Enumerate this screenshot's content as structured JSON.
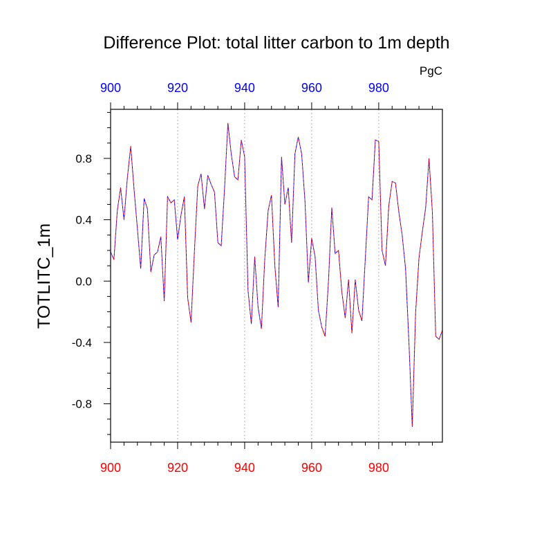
{
  "chart_data": {
    "type": "line",
    "title": "Difference Plot: total litter carbon to 1m depth",
    "units": "PgC",
    "ylabel": "TOTLITC_1m",
    "xlabel": "",
    "xlim": [
      900,
      999
    ],
    "ylim": [
      -1.05,
      1.12
    ],
    "x_ticks": [
      900,
      920,
      940,
      960,
      980
    ],
    "x_tick_labels": [
      "900",
      "920",
      "940",
      "960",
      "980"
    ],
    "y_ticks": [
      0.8,
      0.4,
      0.0,
      -0.4,
      -0.8
    ],
    "y_tick_labels": [
      "0.8",
      "0.4",
      "0.0",
      "-0.4",
      "-0.8"
    ],
    "bottom_axis_color": "#ff0000",
    "top_axis_color": "#0000ff",
    "grid": "vertical dotted",
    "x": [
      900,
      901,
      902,
      903,
      904,
      905,
      906,
      907,
      908,
      909,
      910,
      911,
      912,
      913,
      914,
      915,
      916,
      917,
      918,
      919,
      920,
      921,
      922,
      923,
      924,
      925,
      926,
      927,
      928,
      929,
      930,
      931,
      932,
      933,
      934,
      935,
      936,
      937,
      938,
      939,
      940,
      941,
      942,
      943,
      944,
      945,
      946,
      947,
      948,
      949,
      950,
      951,
      952,
      953,
      954,
      955,
      956,
      957,
      958,
      959,
      960,
      961,
      962,
      963,
      964,
      965,
      966,
      967,
      968,
      969,
      970,
      971,
      972,
      973,
      974,
      975,
      976,
      977,
      978,
      979,
      980,
      981,
      982,
      983,
      984,
      985,
      986,
      987,
      988,
      989,
      990,
      991,
      992,
      993,
      994,
      995,
      996,
      997,
      998,
      999
    ],
    "series": [
      {
        "name": "series-1",
        "color": "#0000ff",
        "dash": "dashed",
        "values": [
          0.19,
          0.14,
          0.46,
          0.61,
          0.4,
          0.67,
          0.88,
          0.6,
          0.34,
          0.08,
          0.54,
          0.47,
          0.06,
          0.17,
          0.19,
          0.29,
          -0.13,
          0.55,
          0.51,
          0.53,
          0.27,
          0.43,
          0.55,
          -0.11,
          -0.27,
          0.19,
          0.62,
          0.7,
          0.47,
          0.69,
          0.63,
          0.58,
          0.25,
          0.23,
          0.6,
          1.03,
          0.83,
          0.68,
          0.66,
          0.92,
          0.81,
          -0.06,
          -0.28,
          0.16,
          -0.17,
          -0.31,
          0.14,
          0.46,
          0.56,
          0.1,
          -0.17,
          0.81,
          0.5,
          0.61,
          0.25,
          0.83,
          0.94,
          0.83,
          0.52,
          -0.01,
          0.28,
          0.16,
          -0.19,
          -0.3,
          -0.36,
          0.0,
          0.48,
          0.18,
          0.2,
          -0.07,
          -0.24,
          0.01,
          -0.34,
          0.01,
          -0.19,
          -0.26,
          0.15,
          0.55,
          0.53,
          0.92,
          0.91,
          0.2,
          0.1,
          0.49,
          0.65,
          0.64,
          0.45,
          0.3,
          0.08,
          -0.39,
          -0.95,
          -0.21,
          0.15,
          0.32,
          0.48,
          0.8,
          0.45,
          -0.36,
          -0.38,
          -0.32
        ]
      },
      {
        "name": "series-2",
        "color": "#ff0000",
        "dash": "dashed",
        "values": [
          0.19,
          0.14,
          0.46,
          0.61,
          0.4,
          0.67,
          0.88,
          0.6,
          0.34,
          0.08,
          0.54,
          0.47,
          0.06,
          0.17,
          0.19,
          0.29,
          -0.13,
          0.55,
          0.51,
          0.53,
          0.27,
          0.43,
          0.55,
          -0.11,
          -0.27,
          0.19,
          0.62,
          0.7,
          0.47,
          0.69,
          0.63,
          0.58,
          0.25,
          0.23,
          0.6,
          1.03,
          0.83,
          0.68,
          0.66,
          0.92,
          0.81,
          -0.06,
          -0.28,
          0.16,
          -0.17,
          -0.31,
          0.14,
          0.46,
          0.56,
          0.1,
          -0.17,
          0.81,
          0.5,
          0.61,
          0.25,
          0.83,
          0.94,
          0.83,
          0.52,
          -0.01,
          0.28,
          0.16,
          -0.19,
          -0.3,
          -0.36,
          0.0,
          0.48,
          0.18,
          0.2,
          -0.07,
          -0.24,
          0.01,
          -0.34,
          0.01,
          -0.19,
          -0.26,
          0.15,
          0.55,
          0.53,
          0.92,
          0.91,
          0.2,
          0.1,
          0.49,
          0.65,
          0.64,
          0.45,
          0.3,
          0.08,
          -0.39,
          -0.95,
          -0.21,
          0.15,
          0.32,
          0.48,
          0.8,
          0.45,
          -0.36,
          -0.38,
          -0.32
        ]
      }
    ]
  }
}
